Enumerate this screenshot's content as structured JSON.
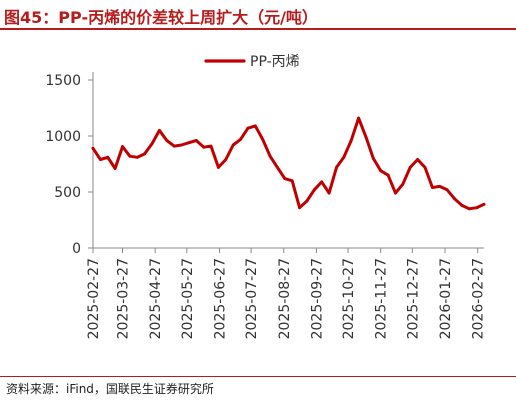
{
  "title": "图45：PP-丙烯的价差较上周扩大（元/吨）",
  "source": "资料来源：iFind，国联民生证券研究所",
  "colors": {
    "accent": "#b71c1c",
    "series": "#c00000"
  },
  "chart_data": {
    "type": "line",
    "title": "",
    "xlabel": "",
    "ylabel": "",
    "ylim": [
      0,
      1500
    ],
    "yticks": [
      0,
      500,
      1000,
      1500
    ],
    "xlim": [
      "2025-02-27",
      "2026-03-05"
    ],
    "xtick_labels": [
      "2025-02-27",
      "2025-03-27",
      "2025-04-27",
      "2025-05-27",
      "2025-06-27",
      "2025-07-27",
      "2025-08-27",
      "2025-09-27",
      "2025-10-27",
      "2025-11-27",
      "2025-12-27",
      "2026-01-27",
      "2026-02-27"
    ],
    "grid": false,
    "legend": {
      "position": "top-center"
    },
    "series": [
      {
        "name": "PP-丙烯",
        "color": "#c00000",
        "x": [
          "2025-02-27",
          "2025-03-06",
          "2025-03-13",
          "2025-03-20",
          "2025-03-27",
          "2025-04-03",
          "2025-04-10",
          "2025-04-17",
          "2025-04-24",
          "2025-05-01",
          "2025-05-08",
          "2025-05-15",
          "2025-05-22",
          "2025-05-29",
          "2025-06-05",
          "2025-06-12",
          "2025-06-19",
          "2025-06-26",
          "2025-07-03",
          "2025-07-10",
          "2025-07-17",
          "2025-07-24",
          "2025-07-31",
          "2025-08-07",
          "2025-08-14",
          "2025-08-21",
          "2025-08-28",
          "2025-09-04",
          "2025-09-11",
          "2025-09-18",
          "2025-09-25",
          "2025-10-02",
          "2025-10-09",
          "2025-10-16",
          "2025-10-23",
          "2025-10-30",
          "2025-11-06",
          "2025-11-13",
          "2025-11-20",
          "2025-11-27",
          "2025-12-04",
          "2025-12-11",
          "2025-12-18",
          "2025-12-25",
          "2026-01-01",
          "2026-01-08",
          "2026-01-15",
          "2026-01-22",
          "2026-01-29",
          "2026-02-05",
          "2026-02-12",
          "2026-02-19",
          "2026-02-26",
          "2026-03-05"
        ],
        "values": [
          890,
          790,
          810,
          710,
          905,
          820,
          810,
          840,
          930,
          1050,
          960,
          910,
          920,
          940,
          960,
          900,
          910,
          720,
          790,
          920,
          970,
          1070,
          1090,
          970,
          820,
          720,
          620,
          600,
          360,
          420,
          520,
          590,
          490,
          720,
          810,
          960,
          1160,
          990,
          800,
          690,
          650,
          490,
          570,
          720,
          790,
          720,
          540,
          550,
          520,
          440,
          380,
          350,
          360,
          390
        ]
      }
    ]
  }
}
